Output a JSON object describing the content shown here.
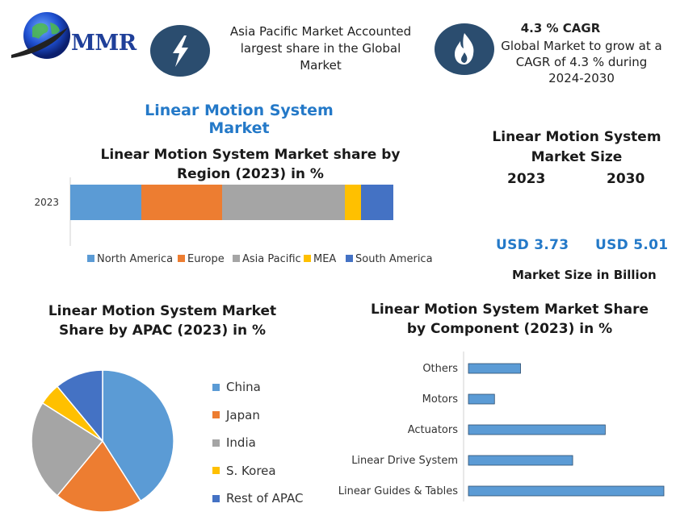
{
  "logo": {
    "text": "MMR"
  },
  "highlights": [
    {
      "icon": "lightning-icon",
      "text": "Asia Pacific Market Accounted largest share in the Global Market"
    },
    {
      "icon": "flame-icon",
      "title": "4.3 % CAGR",
      "text": "Global Market to grow at a CAGR of 4.3 % during 2024-2030"
    }
  ],
  "main_title": "Linear Motion System Market",
  "market_size": {
    "title": "Linear Motion System Market Size",
    "years": [
      "2023",
      "2030"
    ],
    "values": [
      "USD 3.73",
      "USD 5.01"
    ],
    "footer": "Market Size in Billion"
  },
  "colors": {
    "accent_blue": "#2479c8",
    "icon_bg": "#2b4d6f",
    "series": [
      "#5b9bd5",
      "#ed7d31",
      "#a5a5a5",
      "#ffc000",
      "#4472c4"
    ]
  },
  "chart_data": [
    {
      "type": "bar",
      "orientation": "horizontal-stacked",
      "title": "Linear Motion System Market share by Region (2023) in %",
      "categories": [
        "2023"
      ],
      "series": [
        {
          "name": "North America",
          "values": [
            22
          ]
        },
        {
          "name": "Europe",
          "values": [
            25
          ]
        },
        {
          "name": "Asia Pacific",
          "values": [
            38
          ]
        },
        {
          "name": "MEA",
          "values": [
            5
          ]
        },
        {
          "name": "South America",
          "values": [
            10
          ]
        }
      ],
      "legend": "bottom"
    },
    {
      "type": "pie",
      "title": "Linear Motion System Market Share by APAC (2023) in %",
      "labels": [
        "China",
        "Japan",
        "India",
        "S. Korea",
        "Rest of APAC"
      ],
      "values": [
        41,
        20,
        23,
        5,
        11
      ],
      "legend": "right"
    },
    {
      "type": "bar",
      "orientation": "horizontal",
      "title": "Linear Motion System Market Share by Component (2023) in %",
      "categories": [
        "Others",
        "Motors",
        "Actuators",
        "Linear Drive System",
        "Linear Guides & Tables"
      ],
      "values": [
        8,
        4,
        21,
        16,
        30
      ],
      "xlim": [
        0,
        30
      ],
      "grid": false
    }
  ]
}
